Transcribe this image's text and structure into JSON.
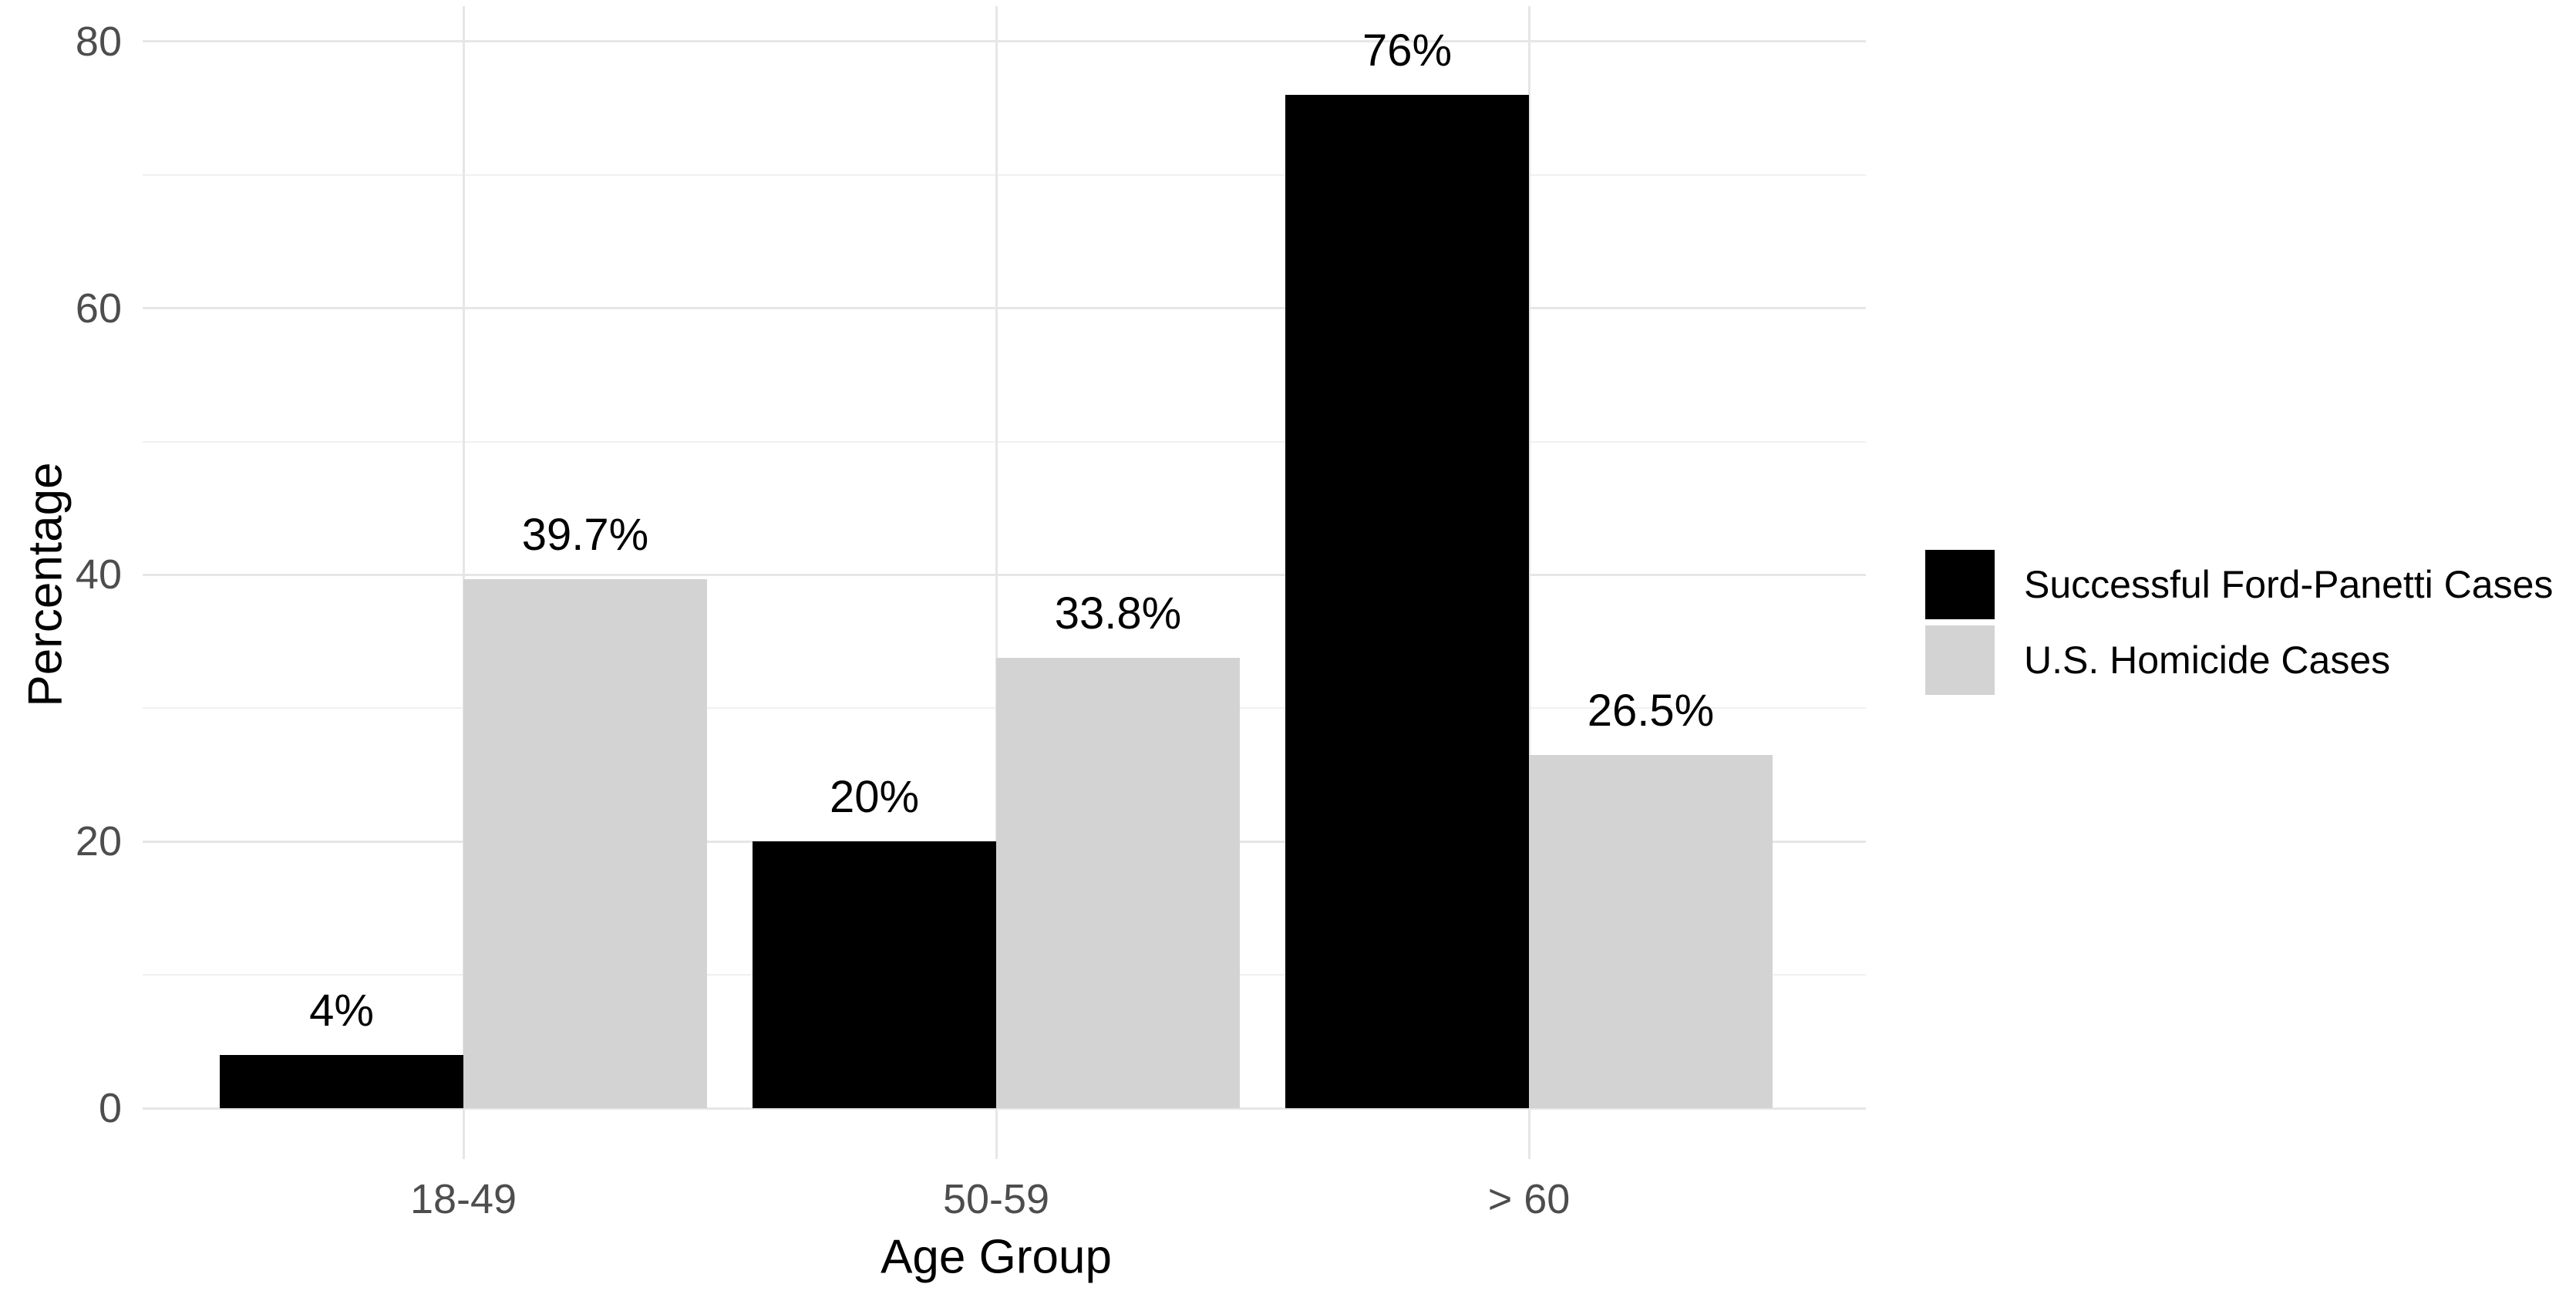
{
  "chart_data": {
    "type": "bar",
    "title": "",
    "categories": [
      "18-49",
      "50-59",
      "> 60"
    ],
    "series": [
      {
        "name": "Successful Ford-Panetti Cases",
        "color": "#000000",
        "values": [
          4,
          20,
          76
        ],
        "labels": [
          "4%",
          "20%",
          "76%"
        ]
      },
      {
        "name": "U.S. Homicide Cases",
        "color": "#d3d3d3",
        "values": [
          39.7,
          33.8,
          26.5
        ],
        "labels": [
          "39.7%",
          "33.8%",
          "26.5%"
        ]
      }
    ],
    "xlabel": "Age Group",
    "ylabel": "Percentage",
    "ylim": [
      0,
      80
    ],
    "yticks": [
      0,
      20,
      40,
      60,
      80
    ],
    "ytick_labels": [
      "0",
      "20",
      "40",
      "60",
      "80"
    ],
    "yminor": [
      10,
      30,
      50,
      70
    ],
    "grid": "major+minor horizontal, major vertical at group centers",
    "legend_position": "right",
    "bar_orientation": "vertical",
    "bar_grouping": "dodged"
  },
  "colors": {
    "background": "#ffffff",
    "axis_text": "#4d4d4d",
    "title_text": "#000000",
    "data_label_text": "#000000",
    "grid_major": "#e6e6e6",
    "grid_minor": "#f0f0f0",
    "bar_black": "#000000",
    "bar_gray": "#d3d3d3"
  }
}
